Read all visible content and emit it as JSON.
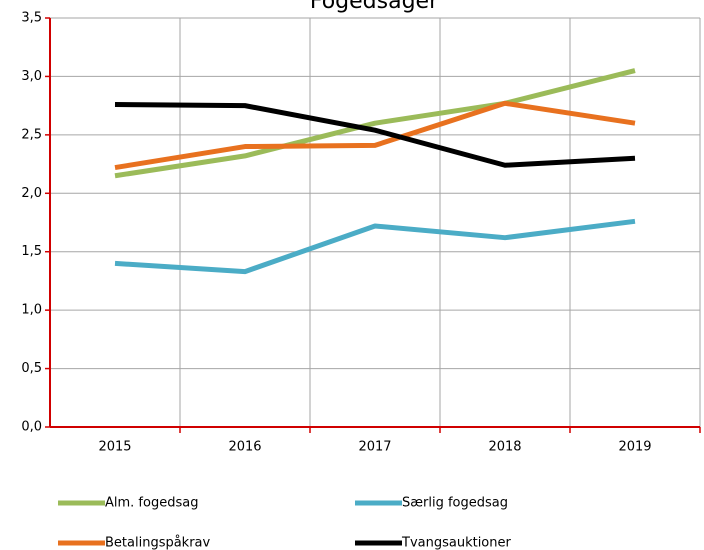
{
  "chart_data": {
    "type": "line",
    "title": "Fogedsager",
    "categories": [
      "2015",
      "2016",
      "2017",
      "2018",
      "2019"
    ],
    "series": [
      {
        "name": "Alm. fogedsag",
        "color": "#9bbb59",
        "values": [
          2.15,
          2.32,
          2.6,
          2.77,
          3.05
        ]
      },
      {
        "name": "Særlig fogedsag",
        "color": "#4bacc6",
        "values": [
          1.4,
          1.33,
          1.72,
          1.62,
          1.76
        ]
      },
      {
        "name": "Betalingspåkrav",
        "color": "#e8711f",
        "values": [
          2.22,
          2.4,
          2.41,
          2.77,
          2.6
        ]
      },
      {
        "name": "Tvangsauktioner",
        "color": "#000000",
        "values": [
          2.76,
          2.75,
          2.54,
          2.24,
          2.3
        ]
      }
    ],
    "ylim": [
      0,
      3.5
    ],
    "yticks": [
      {
        "value": 0,
        "label": "0,0"
      },
      {
        "value": 0.5,
        "label": "0,5"
      },
      {
        "value": 1,
        "label": "1,0"
      },
      {
        "value": 1.5,
        "label": "1,5"
      },
      {
        "value": 2,
        "label": "2,0"
      },
      {
        "value": 2.5,
        "label": "2,5"
      },
      {
        "value": 3,
        "label": "3,0"
      },
      {
        "value": 3.5,
        "label": "3,5"
      }
    ],
    "grid": true
  }
}
